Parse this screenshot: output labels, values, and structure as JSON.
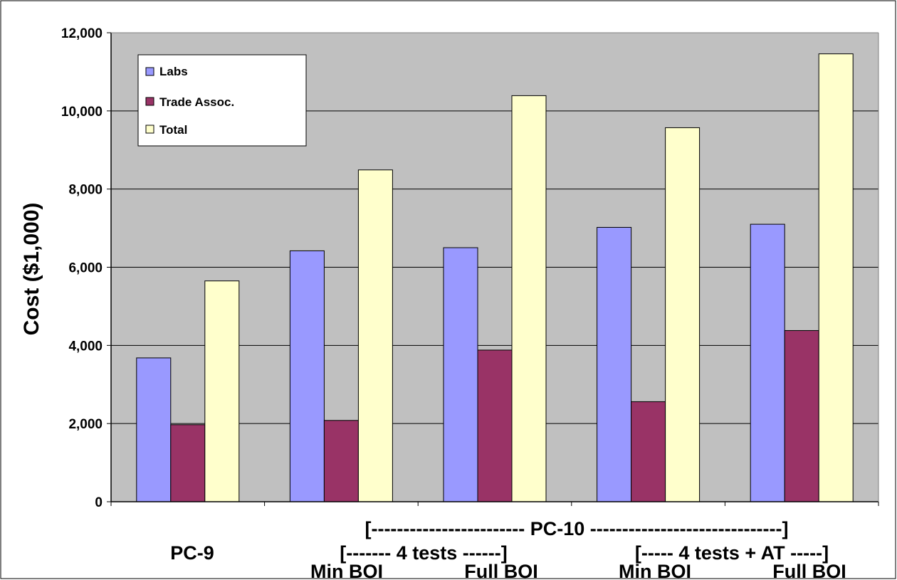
{
  "chart_data": {
    "type": "bar",
    "title": "",
    "xlabel": "",
    "ylabel": "Cost ($1,000)",
    "ylim": [
      0,
      12000
    ],
    "yticks": [
      0,
      2000,
      4000,
      6000,
      8000,
      10000,
      12000
    ],
    "ytick_labels": [
      "0",
      "2,000",
      "4,000",
      "6,000",
      "8,000",
      "10,000",
      "12,000"
    ],
    "grid": true,
    "legend_position": "top-left",
    "categories": [
      "PC-9",
      "Min BOI",
      "Full BOI",
      "Min BOI",
      "Full BOI"
    ],
    "series": [
      {
        "name": "Labs",
        "color": "#9999ff",
        "values": [
          3680,
          6420,
          6500,
          7020,
          7100
        ]
      },
      {
        "name": "Trade Assoc.",
        "color": "#993366",
        "values": [
          1970,
          2080,
          3880,
          2560,
          4380
        ]
      },
      {
        "name": "Total",
        "color": "#ffffcc",
        "values": [
          5650,
          8490,
          10390,
          9570,
          11460
        ]
      }
    ],
    "group_labels": [
      "[------------------------  PC-10  ------------------------------]",
      "[-------  4 tests  ------]",
      "[-----  4 tests + AT  -----]"
    ],
    "colors": {
      "plot_background": "#c0c0c0",
      "gridline": "#000000"
    }
  }
}
